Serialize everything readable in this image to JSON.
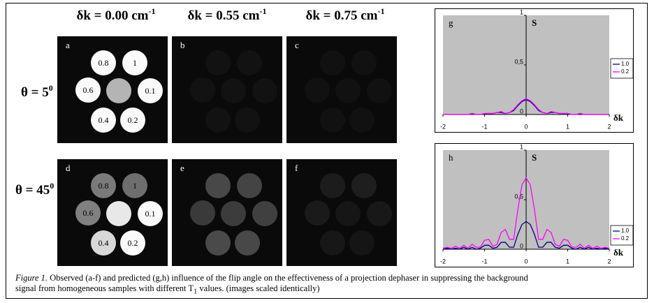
{
  "column_headers": [
    {
      "text": "δk = 0.00 cm",
      "sup": "-1"
    },
    {
      "text": "δk = 0.55 cm",
      "sup": "-1"
    },
    {
      "text": "δk = 0.75 cm",
      "sup": "-1"
    }
  ],
  "row_labels": [
    {
      "text": "θ = 5",
      "sup": "0"
    },
    {
      "text": "θ = 45",
      "sup": "0"
    }
  ],
  "panels": [
    {
      "label": "a",
      "circles": [
        "0.8",
        "1",
        "0.6",
        null,
        "0.1",
        "0.4",
        "0.2"
      ]
    },
    {
      "label": "b"
    },
    {
      "label": "c"
    },
    {
      "label": "d",
      "circles": [
        "0.8",
        "1",
        "0.6",
        null,
        "0.1",
        "0.4",
        "0.2"
      ]
    },
    {
      "label": "e"
    },
    {
      "label": "f"
    }
  ],
  "chart_data": [
    {
      "type": "line",
      "label": "g",
      "ylabel": "S",
      "xlabel": "δk",
      "x": [
        -2,
        -1.9,
        -1.8,
        -1.7,
        -1.6,
        -1.5,
        -1.4,
        -1.3,
        -1.2,
        -1.1,
        -1,
        -0.9,
        -0.8,
        -0.7,
        -0.6,
        -0.5,
        -0.4,
        -0.3,
        -0.2,
        -0.1,
        0,
        0.1,
        0.2,
        0.3,
        0.4,
        0.5,
        0.6,
        0.7,
        0.8,
        0.9,
        1,
        1.1,
        1.2,
        1.3,
        1.4,
        1.5,
        1.6,
        1.7,
        1.8,
        1.9,
        2
      ],
      "series": [
        {
          "name": "1.0",
          "color": "#000080",
          "values": [
            0,
            0,
            0,
            0,
            0,
            0,
            0,
            0.01,
            0,
            0,
            0.01,
            0.01,
            0.01,
            0.02,
            0.02,
            0.01,
            0.02,
            0.04,
            0.09,
            0.13,
            0.15,
            0.13,
            0.09,
            0.04,
            0.02,
            0.01,
            0.02,
            0.02,
            0.01,
            0.01,
            0.01,
            0,
            0,
            0.01,
            0,
            0,
            0,
            0,
            0,
            0,
            0
          ]
        },
        {
          "name": "0.2",
          "color": "#ff00ff",
          "values": [
            0,
            0,
            0,
            0,
            0,
            0,
            0,
            0.01,
            0,
            0,
            0.01,
            0.01,
            0.01,
            0.02,
            0.03,
            0.01,
            0.02,
            0.05,
            0.1,
            0.14,
            0.16,
            0.14,
            0.1,
            0.05,
            0.02,
            0.01,
            0.03,
            0.02,
            0.01,
            0.01,
            0.01,
            0,
            0,
            0.01,
            0,
            0,
            0,
            0,
            0,
            0,
            0
          ]
        }
      ],
      "xlim": [
        -2,
        2
      ],
      "ylim": [
        0,
        1
      ],
      "xticks": [
        -2,
        -1,
        0,
        1,
        2
      ],
      "yticks": [
        0,
        {
          "value": 0.5,
          "label": "0,5"
        },
        1
      ]
    },
    {
      "type": "line",
      "label": "h",
      "ylabel": "S",
      "xlabel": "δk",
      "x": [
        -2,
        -1.9,
        -1.8,
        -1.7,
        -1.6,
        -1.5,
        -1.4,
        -1.3,
        -1.2,
        -1.1,
        -1,
        -0.9,
        -0.8,
        -0.7,
        -0.6,
        -0.5,
        -0.4,
        -0.3,
        -0.2,
        -0.1,
        0,
        0.1,
        0.2,
        0.3,
        0.4,
        0.5,
        0.6,
        0.7,
        0.8,
        0.9,
        1,
        1.1,
        1.2,
        1.3,
        1.4,
        1.5,
        1.6,
        1.7,
        1.8,
        1.9,
        2
      ],
      "series": [
        {
          "name": "1.0",
          "color": "#000080",
          "values": [
            0,
            0.01,
            0,
            0.01,
            0,
            0.02,
            0,
            0.02,
            0,
            0.01,
            0.04,
            0.04,
            0.01,
            0.02,
            0.07,
            0.07,
            0.02,
            0.02,
            0.15,
            0.25,
            0.28,
            0.25,
            0.15,
            0.02,
            0.02,
            0.07,
            0.07,
            0.02,
            0.01,
            0.04,
            0.04,
            0.01,
            0,
            0.02,
            0,
            0.02,
            0,
            0.01,
            0,
            0.01,
            0
          ]
        },
        {
          "name": "0.2",
          "color": "#ff00ff",
          "values": [
            0.01,
            0.02,
            0.01,
            0.03,
            0.01,
            0.04,
            0.01,
            0.05,
            0.02,
            0.02,
            0.09,
            0.1,
            0.03,
            0.05,
            0.17,
            0.2,
            0.1,
            0.1,
            0.4,
            0.65,
            0.72,
            0.65,
            0.4,
            0.1,
            0.1,
            0.2,
            0.17,
            0.05,
            0.03,
            0.1,
            0.09,
            0.02,
            0.02,
            0.05,
            0.01,
            0.04,
            0.01,
            0.03,
            0.01,
            0.02,
            0.01
          ]
        }
      ],
      "xlim": [
        -2,
        2
      ],
      "ylim": [
        0,
        1
      ],
      "xticks": [
        -2,
        -1,
        0,
        1,
        2
      ],
      "yticks": [
        0,
        {
          "value": 0.5,
          "label": "0,5"
        },
        1
      ]
    }
  ],
  "caption": {
    "lead": "Figure 1.",
    "text": " Observed (a-f) and predicted (g,h) influence of the flip angle on the effectiveness of a projection dephaser in suppressing the background signal from homogeneous samples with different T",
    "sub": "1",
    "tail": " values. (images scaled identically)"
  }
}
